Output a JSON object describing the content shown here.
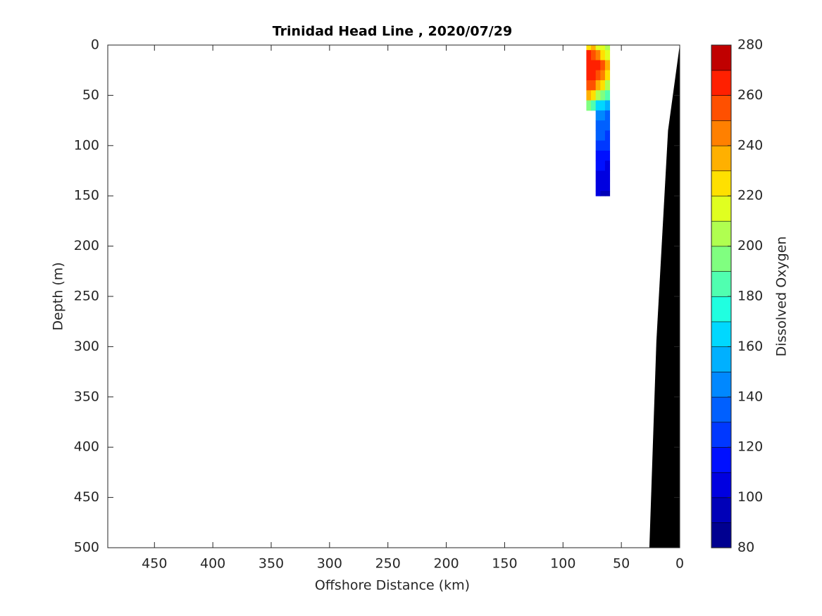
{
  "chart_data": {
    "type": "section",
    "title": "Trinidad Head Line , 2020/07/29",
    "xlabel": "Offshore Distance (km)",
    "ylabel": "Depth (m)",
    "xlim": [
      490,
      0
    ],
    "xticks": [
      450,
      400,
      350,
      300,
      250,
      200,
      150,
      100,
      50,
      0
    ],
    "ylim": [
      0,
      500
    ],
    "yticks": [
      0,
      50,
      100,
      150,
      200,
      250,
      300,
      350,
      400,
      450,
      500
    ],
    "oxygen": {
      "x": [
        78,
        74,
        70,
        66,
        62
      ],
      "depth": [
        0,
        10,
        20,
        30,
        40,
        50,
        60,
        70,
        80,
        90,
        100,
        110,
        120,
        130,
        140,
        150
      ],
      "values": [
        [
          220,
          260,
          265,
          260,
          250,
          230,
          190,
          null,
          null,
          null,
          null,
          null,
          null,
          null,
          null,
          null
        ],
        [
          230,
          255,
          265,
          262,
          250,
          220,
          180,
          null,
          null,
          null,
          null,
          null,
          null,
          null,
          null,
          null
        ],
        [
          215,
          245,
          260,
          255,
          235,
          200,
          165,
          140,
          135,
          130,
          125,
          115,
          110,
          105,
          100,
          100
        ],
        [
          210,
          225,
          250,
          245,
          220,
          190,
          160,
          140,
          135,
          130,
          125,
          118,
          110,
          105,
          100,
          98
        ],
        [
          205,
          215,
          230,
          225,
          205,
          180,
          155,
          138,
          132,
          128,
          122,
          115,
          108,
          104,
          100,
          96
        ]
      ]
    },
    "bottom": {
      "x": [
        0,
        10,
        20,
        26
      ],
      "depth": [
        0,
        85,
        295,
        500
      ],
      "color": "#000000"
    },
    "colorbar": {
      "label": "Dissolved Oxygen",
      "lim": [
        80,
        280
      ],
      "ticks": [
        80,
        100,
        120,
        140,
        160,
        180,
        200,
        220,
        240,
        260,
        280
      ],
      "colors": [
        "#000090",
        "#0000b8",
        "#0000e0",
        "#0010ff",
        "#0038ff",
        "#0060ff",
        "#0088ff",
        "#00b0ff",
        "#00d8ff",
        "#20ffe0",
        "#50ffb0",
        "#80ff80",
        "#b0ff50",
        "#e0ff20",
        "#ffe000",
        "#ffb000",
        "#ff8000",
        "#ff5000",
        "#ff2000",
        "#c00000"
      ]
    }
  }
}
